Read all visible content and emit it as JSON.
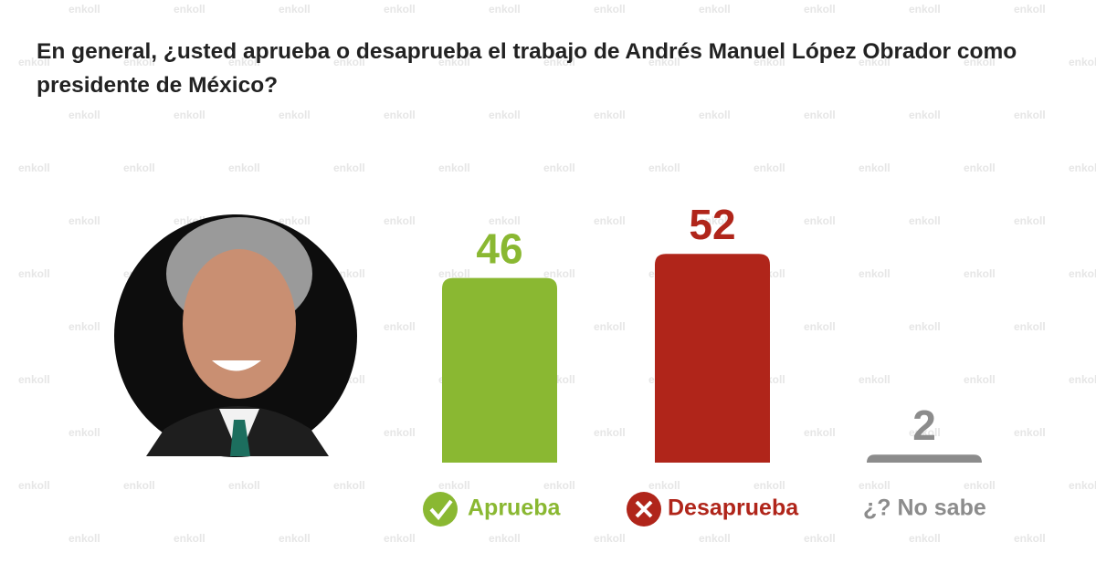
{
  "chart_data": {
    "type": "bar",
    "title": "En general, ¿usted aprueba o desaprueba el trabajo de Andrés Manuel López Obrador como presidente de México?",
    "categories": [
      "Aprueba",
      "Desaprueba",
      "¿? No sabe"
    ],
    "values": [
      46,
      52,
      2
    ],
    "colors": [
      "#8ab832",
      "#b0251a",
      "#8c8c8c"
    ]
  },
  "watermark": "enkoll"
}
